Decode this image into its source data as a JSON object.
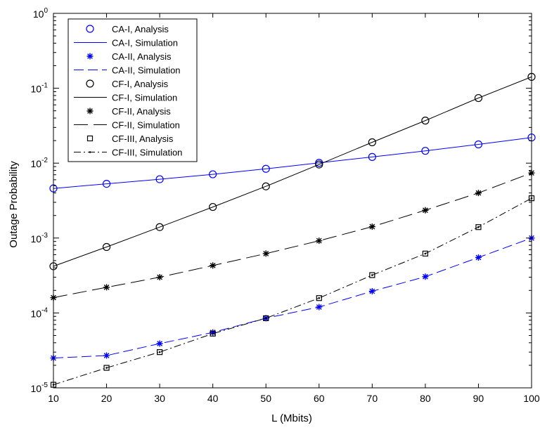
{
  "chart_data": {
    "type": "line",
    "title": "",
    "xlabel": "L (Mbits)",
    "ylabel": "Outage Probability",
    "x": [
      10,
      20,
      30,
      40,
      50,
      60,
      70,
      80,
      90,
      100
    ],
    "xlim": [
      10,
      100
    ],
    "ylim": [
      1e-05,
      1
    ],
    "yscale": "log",
    "xticks": [
      "10",
      "20",
      "30",
      "40",
      "50",
      "60",
      "70",
      "80",
      "90",
      "100"
    ],
    "yticks": [
      {
        "base": "10",
        "exp": "-5",
        "value": 1e-05
      },
      {
        "base": "10",
        "exp": "-4",
        "value": 0.0001
      },
      {
        "base": "10",
        "exp": "-3",
        "value": 0.001
      },
      {
        "base": "10",
        "exp": "-2",
        "value": 0.01
      },
      {
        "base": "10",
        "exp": "-1",
        "value": 0.1
      },
      {
        "base": "10",
        "exp": "0",
        "value": 1
      }
    ],
    "grid": false,
    "legend_position": "top-left",
    "series": [
      {
        "name": "CA-I, Analysis",
        "style": "marker",
        "marker": "circle",
        "color": "#0000ff",
        "values": [
          0.0046,
          0.0053,
          0.0061,
          0.0071,
          0.0084,
          0.0101,
          0.0121,
          0.0146,
          0.0178,
          0.022
        ]
      },
      {
        "name": "CA-I, Simulation",
        "style": "line",
        "dash": "solid",
        "color": "#0000ff",
        "values": [
          0.0046,
          0.0053,
          0.0061,
          0.0071,
          0.0084,
          0.0101,
          0.0121,
          0.0146,
          0.0178,
          0.022
        ]
      },
      {
        "name": "CA-II, Analysis",
        "style": "marker",
        "marker": "asterisk",
        "color": "#0000ff",
        "values": [
          2.5e-05,
          2.7e-05,
          3.9e-05,
          5.5e-05,
          8.5e-05,
          0.00012,
          0.000195,
          0.000305,
          0.00055,
          0.001
        ]
      },
      {
        "name": "CA-II, Simulation",
        "style": "line",
        "dash": "dashed",
        "color": "#0000ff",
        "values": [
          2.5e-05,
          2.7e-05,
          3.9e-05,
          5.5e-05,
          8.5e-05,
          0.00012,
          0.000195,
          0.000305,
          0.00055,
          0.001
        ]
      },
      {
        "name": "CF-I, Analysis",
        "style": "marker",
        "marker": "circle",
        "color": "#000000",
        "values": [
          0.00042,
          0.00076,
          0.0014,
          0.0026,
          0.0049,
          0.0096,
          0.019,
          0.037,
          0.074,
          0.142
        ]
      },
      {
        "name": "CF-I, Simulation",
        "style": "line",
        "dash": "solid",
        "color": "#000000",
        "values": [
          0.00042,
          0.00076,
          0.0014,
          0.0026,
          0.0049,
          0.0096,
          0.019,
          0.037,
          0.074,
          0.142
        ]
      },
      {
        "name": "CF-II, Analysis",
        "style": "marker",
        "marker": "asterisk",
        "color": "#000000",
        "values": [
          0.00016,
          0.00022,
          0.0003,
          0.00043,
          0.00062,
          0.00092,
          0.00142,
          0.00235,
          0.004,
          0.0074
        ]
      },
      {
        "name": "CF-II, Simulation",
        "style": "line",
        "dash": "longdash",
        "color": "#000000",
        "values": [
          0.00016,
          0.00022,
          0.0003,
          0.00043,
          0.00062,
          0.00092,
          0.00142,
          0.00235,
          0.004,
          0.0074
        ]
      },
      {
        "name": "CF-III, Analysis",
        "style": "marker",
        "marker": "square",
        "color": "#000000",
        "values": [
          1.1e-05,
          1.85e-05,
          3e-05,
          5.3e-05,
          8.5e-05,
          0.000158,
          0.00032,
          0.00062,
          0.0014,
          0.0034
        ]
      },
      {
        "name": "CF-III, Simulation",
        "style": "line",
        "dash": "dashdot",
        "color": "#000000",
        "values": [
          1.1e-05,
          1.85e-05,
          3e-05,
          5.3e-05,
          8.5e-05,
          0.000158,
          0.00032,
          0.00062,
          0.0014,
          0.0034
        ]
      }
    ]
  }
}
